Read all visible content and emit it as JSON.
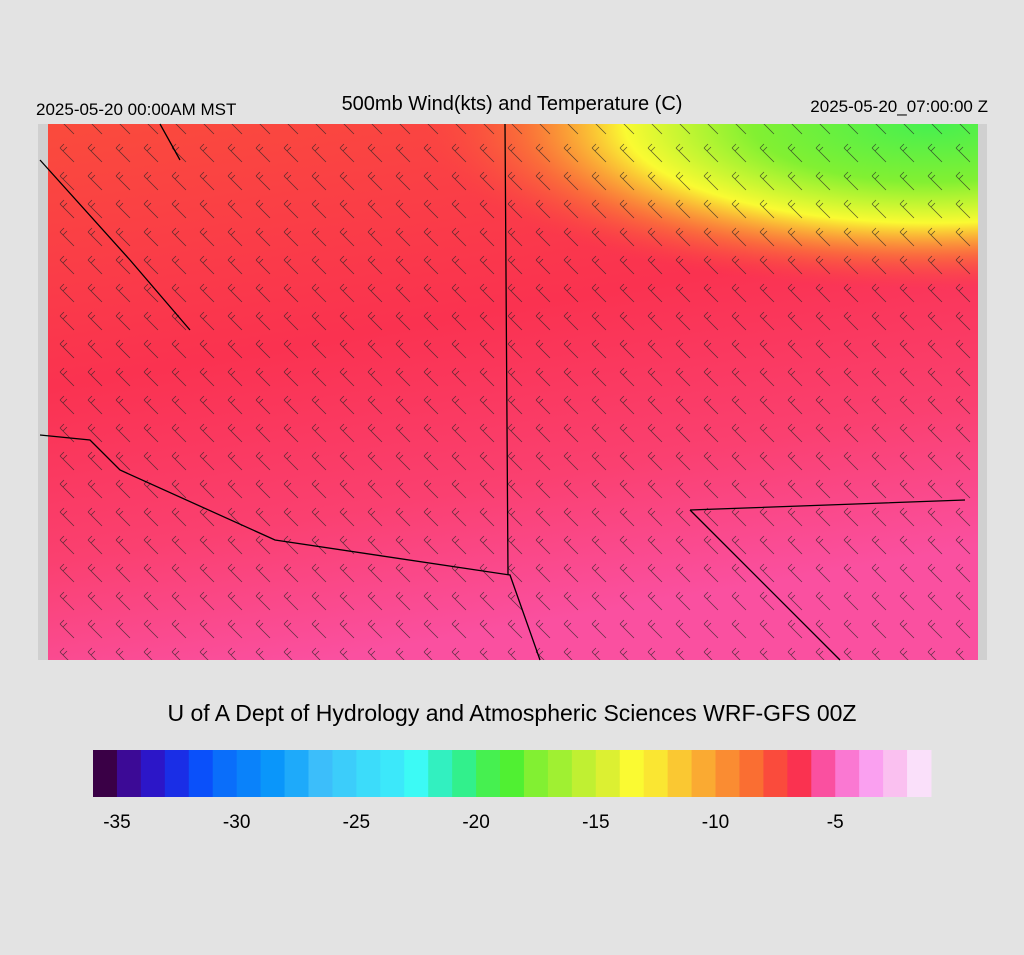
{
  "header": {
    "valid_local": "2025-05-20 00:00AM MST",
    "title": "500mb Wind(kts) and Temperature (C)",
    "valid_utc": "2025-05-20_07:00:00 Z"
  },
  "credit": "U of A Dept of Hydrology and Atmospheric Sciences WRF-GFS 00Z",
  "colorbar": {
    "range": [
      -36,
      -1
    ],
    "colors": [
      "#3a0046",
      "#3c0a96",
      "#2c16c8",
      "#1a2ee6",
      "#0a50fa",
      "#0a6efa",
      "#0a82fa",
      "#0a96fa",
      "#1eaafa",
      "#3cbefa",
      "#3ccdfa",
      "#3cdcfa",
      "#3ce8fa",
      "#3cfaf5",
      "#32f0c0",
      "#32f08c",
      "#46f050",
      "#50f032",
      "#82f032",
      "#a0f032",
      "#c0f032",
      "#dcf032",
      "#fafa32",
      "#fae632",
      "#fac832",
      "#faaa32",
      "#fa8c32",
      "#fa6e32",
      "#fa4b3c",
      "#fa3250",
      "#fa50a0",
      "#fa78d2",
      "#faa0f0",
      "#fac0f0",
      "#fae0fa"
    ],
    "ticks": [
      -35,
      -30,
      -25,
      -20,
      -15,
      -10,
      -5
    ]
  }
}
